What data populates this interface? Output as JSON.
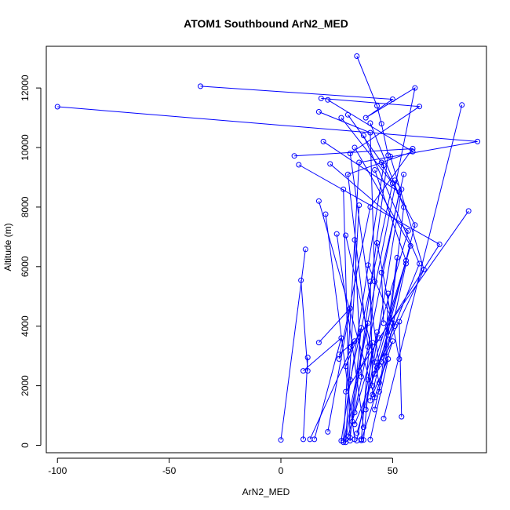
{
  "chart_data": {
    "type": "line",
    "title": "ATOM1 Southbound ArN2_MED",
    "xlabel": "ArN2_MED",
    "ylabel": "Altitude (m)",
    "xlim": [
      -105,
      92
    ],
    "ylim": [
      -250,
      13400
    ],
    "x_ticks": [
      -100,
      -50,
      0,
      50
    ],
    "y_ticks": [
      0,
      2000,
      4000,
      6000,
      8000,
      10000,
      12000
    ],
    "grid": false,
    "legend": "none",
    "colors": {
      "series": "#0000ff",
      "axes": "#000000"
    },
    "series": [
      {
        "x": [
          34,
          43,
          45,
          48,
          32
        ],
        "y": [
          13070,
          11400,
          10800,
          9740,
          800
        ]
      },
      {
        "x": [
          -36,
          50,
          38,
          60,
          28
        ],
        "y": [
          12060,
          11620,
          11000,
          12000,
          100
        ]
      },
      {
        "x": [
          -100,
          88,
          35,
          28
        ],
        "y": [
          11370,
          10200,
          9500,
          150
        ]
      },
      {
        "x": [
          18,
          62,
          31,
          44
        ],
        "y": [
          11650,
          11380,
          9800,
          2700
        ]
      },
      {
        "x": [
          21,
          59,
          30,
          39
        ],
        "y": [
          11600,
          9860,
          9100,
          3300
        ]
      },
      {
        "x": [
          17,
          40,
          42,
          36
        ],
        "y": [
          11200,
          10500,
          5500,
          200
        ]
      },
      {
        "x": [
          6,
          59,
          40,
          26
        ],
        "y": [
          9720,
          9960,
          8000,
          2900
        ]
      },
      {
        "x": [
          8,
          71,
          29
        ],
        "y": [
          9420,
          6750,
          1800
        ]
      },
      {
        "x": [
          19,
          53,
          33
        ],
        "y": [
          10200,
          8500,
          1100
        ]
      },
      {
        "x": [
          30,
          46,
          27
        ],
        "y": [
          11100,
          9400,
          150
        ]
      },
      {
        "x": [
          40,
          55,
          48
        ],
        "y": [
          10820,
          8000,
          3700
        ]
      },
      {
        "x": [
          22,
          57,
          30
        ],
        "y": [
          9450,
          7200,
          300
        ]
      },
      {
        "x": [
          27,
          50,
          31
        ],
        "y": [
          11000,
          8800,
          2200
        ]
      },
      {
        "x": [
          33,
          58,
          34
        ],
        "y": [
          10000,
          6700,
          400
        ]
      },
      {
        "x": [
          37,
          62,
          33
        ],
        "y": [
          10400,
          6100,
          700
        ]
      },
      {
        "x": [
          42,
          56,
          42
        ],
        "y": [
          9250,
          6200,
          2800
        ]
      },
      {
        "x": [
          45,
          60,
          40
        ],
        "y": [
          9500,
          7400,
          1500
        ]
      },
      {
        "x": [
          49,
          64,
          43
        ],
        "y": [
          9700,
          5900,
          2600
        ]
      },
      {
        "x": [
          51,
          54,
          38
        ],
        "y": [
          8900,
          8600,
          1200
        ]
      },
      {
        "x": [
          55,
          45,
          46
        ],
        "y": [
          9100,
          5800,
          4100
        ]
      },
      {
        "x": [
          81,
          46
        ],
        "y": [
          11430,
          900
        ]
      },
      {
        "x": [
          84,
          44
        ],
        "y": [
          7870,
          3600
        ]
      },
      {
        "x": [
          35,
          29
        ],
        "y": [
          8060,
          100
        ]
      },
      {
        "x": [
          28,
          31
        ],
        "y": [
          8600,
          150
        ]
      },
      {
        "x": [
          20,
          33
        ],
        "y": [
          7760,
          200
        ]
      },
      {
        "x": [
          17,
          42
        ],
        "y": [
          8200,
          1600
        ]
      },
      {
        "x": [
          25,
          37
        ],
        "y": [
          7100,
          600
        ]
      },
      {
        "x": [
          29,
          44
        ],
        "y": [
          7050,
          2100
        ]
      },
      {
        "x": [
          33,
          36
        ],
        "y": [
          6900,
          2300
        ]
      },
      {
        "x": [
          39,
          51
        ],
        "y": [
          6050,
          4000
        ]
      },
      {
        "x": [
          43,
          53
        ],
        "y": [
          6800,
          2900
        ]
      },
      {
        "x": [
          52,
          44
        ],
        "y": [
          6300,
          1800
        ]
      },
      {
        "x": [
          56,
          42
        ],
        "y": [
          6100,
          1200
        ]
      },
      {
        "x": [
          11,
          0
        ],
        "y": [
          6580,
          180
        ]
      },
      {
        "x": [
          9,
          12
        ],
        "y": [
          5540,
          2500
        ]
      },
      {
        "x": [
          12,
          10
        ],
        "y": [
          2950,
          200
        ]
      },
      {
        "x": [
          10,
          27,
          15
        ],
        "y": [
          2500,
          3600,
          200
        ]
      },
      {
        "x": [
          17,
          31,
          21
        ],
        "y": [
          3450,
          4600,
          450
        ]
      },
      {
        "x": [
          26,
          33,
          13
        ],
        "y": [
          3050,
          3500,
          200
        ]
      },
      {
        "x": [
          29,
          36,
          31
        ],
        "y": [
          2650,
          3950,
          250
        ]
      },
      {
        "x": [
          31,
          39,
          29
        ],
        "y": [
          3300,
          4100,
          200
        ]
      },
      {
        "x": [
          35,
          41,
          37
        ],
        "y": [
          2500,
          3450,
          180
        ]
      },
      {
        "x": [
          39,
          43,
          34
        ],
        "y": [
          2200,
          3800,
          150
        ]
      },
      {
        "x": [
          41,
          48,
          40
        ],
        "y": [
          1700,
          2900,
          190
        ]
      },
      {
        "x": [
          45,
          50,
          36
        ],
        "y": [
          2800,
          3500,
          160
        ]
      },
      {
        "x": [
          53,
          54
        ],
        "y": [
          4150,
          960
        ]
      },
      {
        "x": [
          50,
          42
        ],
        "y": [
          4100,
          2400
        ]
      },
      {
        "x": [
          48,
          47
        ],
        "y": [
          5100,
          3000
        ]
      },
      {
        "x": [
          40,
          41
        ],
        "y": [
          5500,
          2000
        ]
      }
    ]
  }
}
